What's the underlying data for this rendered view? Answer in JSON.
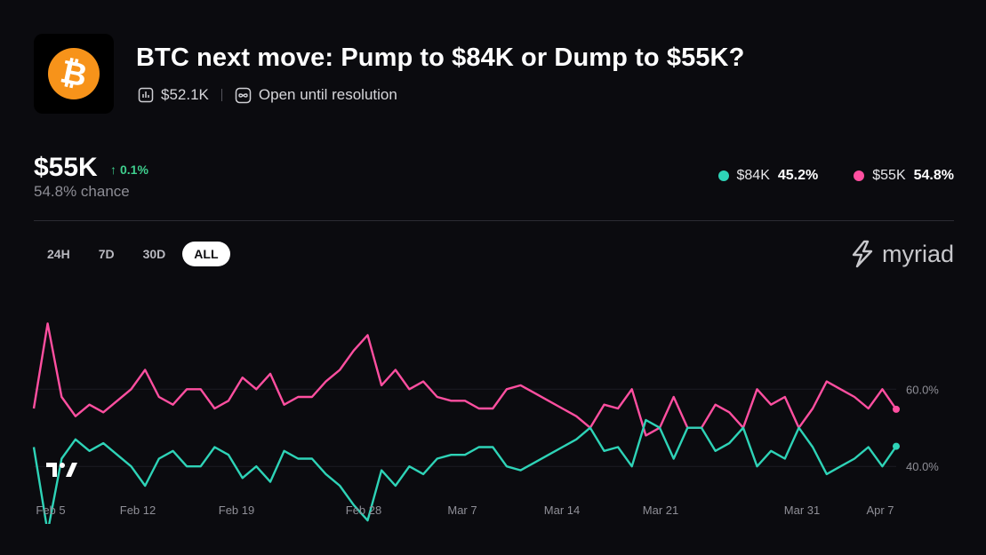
{
  "market": {
    "title": "BTC next move: Pump to $84K or Dump to $55K?",
    "volume": "$52.1K",
    "status": "Open until resolution"
  },
  "headline": {
    "price": "$55K",
    "change": "0.1%",
    "chance": "54.8% chance"
  },
  "legend": [
    {
      "label": "$84K",
      "value": "45.2%",
      "color": "#2ed3b7"
    },
    {
      "label": "$55K",
      "value": "54.8%",
      "color": "#ff4fa0"
    }
  ],
  "ranges": [
    "24H",
    "7D",
    "30D",
    "ALL"
  ],
  "active_range": "ALL",
  "brand": "myriad",
  "colors": {
    "accent_up": "#3fcf8e",
    "teal": "#2ed3b7",
    "pink": "#ff4fa0",
    "btc": "#f7931a"
  },
  "chart_data": {
    "type": "line",
    "title": "",
    "xlabel": "",
    "ylabel": "",
    "x_tick_labels": [
      "Feb 5",
      "Feb 12",
      "Feb 19",
      "Feb 28",
      "Mar 7",
      "Mar 14",
      "Mar 21",
      "Mar 31",
      "Apr 7"
    ],
    "y_tick_labels": [
      "60.0%",
      "40.0%"
    ],
    "y_ticks": [
      60,
      40
    ],
    "ylim": [
      32,
      78
    ],
    "x": [
      5,
      6,
      7,
      8,
      9,
      10,
      11,
      12,
      13,
      14,
      15,
      16,
      17,
      18,
      19,
      20,
      21,
      22,
      23,
      24,
      25,
      26,
      27,
      28,
      29,
      30,
      31,
      32,
      33,
      34,
      35,
      36,
      37,
      38,
      39,
      40,
      41,
      42,
      43,
      44,
      45,
      46,
      47,
      48,
      49,
      50,
      51,
      52,
      53,
      54,
      55,
      56,
      57,
      58,
      59,
      60,
      61,
      62,
      63,
      64,
      65,
      66,
      67
    ],
    "series": [
      {
        "name": "$55K",
        "color": "#ff4fa0",
        "values": [
          55,
          77,
          58,
          53,
          56,
          54,
          57,
          60,
          65,
          58,
          56,
          60,
          60,
          55,
          57,
          63,
          60,
          64,
          56,
          58,
          58,
          62,
          65,
          70,
          74,
          61,
          65,
          60,
          62,
          58,
          57,
          57,
          55,
          55,
          60,
          61,
          59,
          57,
          55,
          53,
          50,
          56,
          55,
          60,
          48,
          50,
          58,
          50,
          50,
          56,
          54,
          50,
          60,
          56,
          58,
          50,
          55,
          62,
          60,
          58,
          55,
          60,
          54.8
        ]
      },
      {
        "name": "$84K",
        "color": "#2ed3b7",
        "values": [
          45,
          23,
          42,
          47,
          44,
          46,
          43,
          40,
          35,
          42,
          44,
          40,
          40,
          45,
          43,
          37,
          40,
          36,
          44,
          42,
          42,
          38,
          35,
          30,
          26,
          39,
          35,
          40,
          38,
          42,
          43,
          43,
          45,
          45,
          40,
          39,
          41,
          43,
          45,
          47,
          50,
          44,
          45,
          40,
          52,
          50,
          42,
          50,
          50,
          44,
          46,
          50,
          40,
          44,
          42,
          50,
          45,
          38,
          40,
          42,
          45,
          40,
          45.2
        ]
      }
    ]
  }
}
